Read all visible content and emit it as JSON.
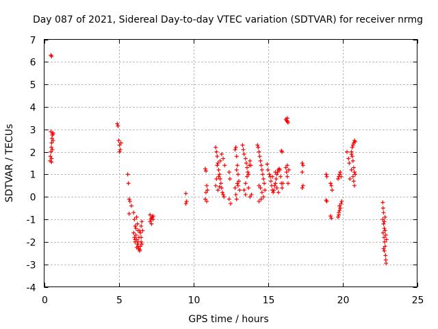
{
  "chart_data": {
    "type": "scatter",
    "title": "Day 087 of 2021, Sidereal Day-to-day VTEC variation (SDTVAR) for receiver nrmg",
    "xlabel": "GPS time / hours",
    "ylabel": "SDTVAR / TECUs",
    "xlim": [
      0,
      25
    ],
    "ylim": [
      -4,
      7
    ],
    "xticks": [
      0,
      5,
      10,
      15,
      20,
      25
    ],
    "yticks": [
      -4,
      -3,
      -2,
      -1,
      0,
      1,
      2,
      3,
      4,
      5,
      6,
      7
    ],
    "grid": true,
    "marker": "+",
    "color": "#ff0000",
    "series": [
      {
        "name": "SDTVAR",
        "points": [
          [
            0.45,
            6.3
          ],
          [
            0.5,
            6.25
          ],
          [
            0.4,
            1.6
          ],
          [
            0.42,
            1.8
          ],
          [
            0.45,
            2.0
          ],
          [
            0.48,
            2.2
          ],
          [
            0.5,
            2.4
          ],
          [
            0.52,
            2.6
          ],
          [
            0.55,
            2.75
          ],
          [
            0.58,
            2.85
          ],
          [
            0.6,
            2.8
          ],
          [
            0.5,
            1.55
          ],
          [
            0.55,
            2.1
          ],
          [
            0.6,
            2.5
          ],
          [
            0.45,
            2.9
          ],
          [
            0.5,
            1.7
          ],
          [
            4.9,
            3.25
          ],
          [
            4.95,
            3.15
          ],
          [
            5.0,
            2.5
          ],
          [
            5.05,
            2.3
          ],
          [
            5.1,
            2.1
          ],
          [
            5.15,
            2.4
          ],
          [
            5.05,
            2.0
          ],
          [
            5.6,
            1.0
          ],
          [
            5.65,
            0.6
          ],
          [
            5.7,
            -0.1
          ],
          [
            5.75,
            -0.2
          ],
          [
            5.85,
            -0.4
          ],
          [
            5.7,
            -0.75
          ],
          [
            6.0,
            -0.7
          ],
          [
            6.05,
            -1.0
          ],
          [
            6.1,
            -1.3
          ],
          [
            6.0,
            -1.6
          ],
          [
            6.05,
            -1.8
          ],
          [
            6.1,
            -2.0
          ],
          [
            6.15,
            -1.7
          ],
          [
            6.2,
            -1.9
          ],
          [
            6.25,
            -2.1
          ],
          [
            6.3,
            -2.2
          ],
          [
            6.35,
            -2.3
          ],
          [
            6.4,
            -2.35
          ],
          [
            6.45,
            -2.2
          ],
          [
            6.5,
            -2.0
          ],
          [
            6.3,
            -1.5
          ],
          [
            6.25,
            -1.2
          ],
          [
            6.4,
            -1.5
          ],
          [
            6.5,
            -1.3
          ],
          [
            6.55,
            -1.1
          ],
          [
            6.2,
            -0.9
          ],
          [
            6.15,
            -1.4
          ],
          [
            6.35,
            -1.8
          ],
          [
            6.45,
            -1.6
          ],
          [
            6.5,
            -1.8
          ],
          [
            6.55,
            -2.1
          ],
          [
            6.6,
            -1.5
          ],
          [
            6.1,
            -1.9
          ],
          [
            6.3,
            -2.0
          ],
          [
            6.2,
            -2.25
          ],
          [
            6.4,
            -2.4
          ],
          [
            7.1,
            -0.8
          ],
          [
            7.15,
            -1.0
          ],
          [
            7.2,
            -1.2
          ],
          [
            7.25,
            -0.9
          ],
          [
            7.3,
            -0.85
          ],
          [
            7.2,
            -0.95
          ],
          [
            7.1,
            -1.1
          ],
          [
            7.3,
            -1.0
          ],
          [
            9.5,
            0.15
          ],
          [
            9.55,
            -0.2
          ],
          [
            9.5,
            -0.3
          ],
          [
            10.8,
            1.25
          ],
          [
            10.85,
            1.15
          ],
          [
            10.9,
            0.5
          ],
          [
            10.95,
            0.3
          ],
          [
            10.8,
            -0.1
          ],
          [
            10.85,
            0.2
          ],
          [
            10.9,
            -0.2
          ],
          [
            11.5,
            2.2
          ],
          [
            11.55,
            2.0
          ],
          [
            11.6,
            1.8
          ],
          [
            11.65,
            1.5
          ],
          [
            11.7,
            1.2
          ],
          [
            11.75,
            1.0
          ],
          [
            11.8,
            0.8
          ],
          [
            11.85,
            0.6
          ],
          [
            11.9,
            0.4
          ],
          [
            11.95,
            0.2
          ],
          [
            12.0,
            0.1
          ],
          [
            12.05,
            0.0
          ],
          [
            11.6,
            1.4
          ],
          [
            11.7,
            0.9
          ],
          [
            11.8,
            1.6
          ],
          [
            11.9,
            1.9
          ],
          [
            12.0,
            1.7
          ],
          [
            12.1,
            1.4
          ],
          [
            11.5,
            0.5
          ],
          [
            11.55,
            0.8
          ],
          [
            11.65,
            0.3
          ],
          [
            11.75,
            0.45
          ],
          [
            12.4,
            1.1
          ],
          [
            12.45,
            0.8
          ],
          [
            12.4,
            -0.1
          ],
          [
            12.5,
            -0.3
          ],
          [
            12.8,
            2.1
          ],
          [
            12.85,
            2.2
          ],
          [
            12.9,
            1.8
          ],
          [
            12.95,
            1.4
          ],
          [
            13.0,
            1.0
          ],
          [
            13.05,
            0.7
          ],
          [
            12.8,
            0.4
          ],
          [
            12.85,
            0.1
          ],
          [
            12.9,
            -0.1
          ],
          [
            12.95,
            0.6
          ],
          [
            13.0,
            0.5
          ],
          [
            13.1,
            0.3
          ],
          [
            12.9,
            1.2
          ],
          [
            13.3,
            2.3
          ],
          [
            13.35,
            2.1
          ],
          [
            13.4,
            1.9
          ],
          [
            13.5,
            1.7
          ],
          [
            13.55,
            1.5
          ],
          [
            13.6,
            1.3
          ],
          [
            13.65,
            1.1
          ],
          [
            13.7,
            1.0
          ],
          [
            13.75,
            1.4
          ],
          [
            13.8,
            1.6
          ],
          [
            13.85,
            1.4
          ],
          [
            13.4,
            0.3
          ],
          [
            13.5,
            0.6
          ],
          [
            13.6,
            0.9
          ],
          [
            13.7,
            0.4
          ],
          [
            13.8,
            0.0
          ],
          [
            13.9,
            0.1
          ],
          [
            13.5,
            0.1
          ],
          [
            14.3,
            2.3
          ],
          [
            14.35,
            2.2
          ],
          [
            14.4,
            2.0
          ],
          [
            14.45,
            1.8
          ],
          [
            14.5,
            1.6
          ],
          [
            14.55,
            1.4
          ],
          [
            14.6,
            1.2
          ],
          [
            14.65,
            1.0
          ],
          [
            14.7,
            0.8
          ],
          [
            14.75,
            0.6
          ],
          [
            14.5,
            0.4
          ],
          [
            14.6,
            0.2
          ],
          [
            14.7,
            0.0
          ],
          [
            14.4,
            -0.2
          ],
          [
            14.55,
            -0.1
          ],
          [
            14.8,
            0.3
          ],
          [
            14.4,
            0.5
          ],
          [
            14.95,
            1.45
          ],
          [
            15.0,
            1.2
          ],
          [
            15.1,
            1.0
          ],
          [
            15.15,
            0.9
          ],
          [
            15.2,
            0.7
          ],
          [
            15.25,
            0.5
          ],
          [
            15.3,
            0.3
          ],
          [
            15.35,
            0.2
          ],
          [
            15.4,
            0.3
          ],
          [
            15.45,
            0.5
          ],
          [
            15.5,
            0.6
          ],
          [
            15.55,
            0.8
          ],
          [
            15.6,
            1.0
          ],
          [
            15.65,
            1.1
          ],
          [
            15.7,
            1.2
          ],
          [
            15.75,
            1.25
          ],
          [
            15.8,
            1.2
          ],
          [
            15.85,
            0.9
          ],
          [
            15.9,
            0.6
          ],
          [
            15.95,
            0.4
          ],
          [
            16.0,
            0.6
          ],
          [
            15.3,
            0.9
          ],
          [
            15.5,
            1.1
          ],
          [
            15.6,
            0.4
          ],
          [
            15.7,
            0.2
          ],
          [
            15.9,
            2.05
          ],
          [
            15.95,
            2.0
          ],
          [
            16.2,
            3.45
          ],
          [
            16.25,
            3.4
          ],
          [
            16.3,
            3.35
          ],
          [
            16.35,
            3.3
          ],
          [
            16.3,
            3.5
          ],
          [
            16.2,
            1.3
          ],
          [
            16.25,
            1.1
          ],
          [
            16.3,
            0.9
          ],
          [
            16.35,
            0.6
          ],
          [
            16.4,
            1.2
          ],
          [
            16.3,
            1.4
          ],
          [
            17.3,
            1.5
          ],
          [
            17.35,
            1.4
          ],
          [
            17.3,
            1.1
          ],
          [
            17.35,
            0.5
          ],
          [
            17.3,
            0.4
          ],
          [
            18.9,
            1.0
          ],
          [
            18.95,
            0.9
          ],
          [
            18.9,
            -0.15
          ],
          [
            18.95,
            -0.2
          ],
          [
            19.2,
            0.6
          ],
          [
            19.25,
            0.5
          ],
          [
            19.3,
            0.3
          ],
          [
            19.2,
            -0.85
          ],
          [
            19.25,
            -0.95
          ],
          [
            19.7,
            0.8
          ],
          [
            19.75,
            0.9
          ],
          [
            19.8,
            1.0
          ],
          [
            19.85,
            1.1
          ],
          [
            19.9,
            0.9
          ],
          [
            19.7,
            -0.9
          ],
          [
            19.75,
            -0.8
          ],
          [
            19.8,
            -0.6
          ],
          [
            19.85,
            -0.5
          ],
          [
            19.9,
            -0.3
          ],
          [
            19.95,
            -0.2
          ],
          [
            19.8,
            -0.4
          ],
          [
            19.75,
            -0.7
          ],
          [
            20.3,
            2.0
          ],
          [
            20.4,
            1.7
          ],
          [
            20.45,
            1.5
          ],
          [
            20.5,
            0.8
          ],
          [
            20.6,
            2.0
          ],
          [
            20.65,
            2.2
          ],
          [
            20.7,
            2.3
          ],
          [
            20.75,
            2.4
          ],
          [
            20.8,
            2.5
          ],
          [
            20.85,
            2.45
          ],
          [
            20.6,
            1.9
          ],
          [
            20.65,
            1.8
          ],
          [
            20.7,
            1.6
          ],
          [
            20.75,
            1.3
          ],
          [
            20.8,
            1.1
          ],
          [
            20.85,
            1.0
          ],
          [
            20.7,
            0.9
          ],
          [
            20.75,
            0.7
          ],
          [
            20.8,
            0.5
          ],
          [
            20.6,
            1.2
          ],
          [
            22.7,
            -0.25
          ],
          [
            22.72,
            -0.5
          ],
          [
            22.75,
            -0.7
          ],
          [
            22.7,
            -1.0
          ],
          [
            22.75,
            -1.2
          ],
          [
            22.8,
            -1.4
          ],
          [
            22.72,
            -1.6
          ],
          [
            22.78,
            -1.8
          ],
          [
            22.82,
            -2.0
          ],
          [
            22.85,
            -2.2
          ],
          [
            22.8,
            -2.4
          ],
          [
            22.88,
            -2.6
          ],
          [
            22.9,
            -2.8
          ],
          [
            22.92,
            -2.95
          ],
          [
            22.85,
            -1.5
          ],
          [
            22.9,
            -1.7
          ],
          [
            22.95,
            -1.9
          ],
          [
            22.75,
            -2.3
          ],
          [
            22.8,
            -1.1
          ],
          [
            22.85,
            -0.9
          ]
        ]
      }
    ]
  }
}
